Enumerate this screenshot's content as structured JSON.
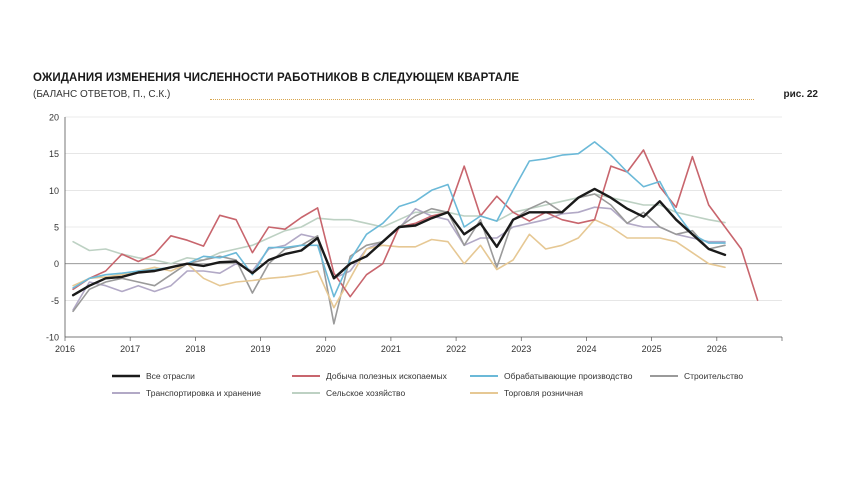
{
  "header": {
    "title": "ОЖИДАНИЯ ИЗМЕНЕНИЯ ЧИСЛЕННОСТИ РАБОТНИКОВ В СЛЕДУЮЩЕМ КВАРТАЛЕ",
    "subtitle": "(БАЛАНС ОТВЕТОВ, П., С.К.)",
    "fig_label": "рис. 22"
  },
  "chart_data": {
    "type": "line",
    "ylim": [
      -10,
      20
    ],
    "yticks": [
      -10,
      -5,
      0,
      5,
      10,
      15,
      20
    ],
    "xlim": [
      2016,
      2027
    ],
    "xticks": [
      "2016",
      "2017",
      "2018",
      "2019",
      "2020",
      "2021",
      "2022",
      "2023",
      "2024",
      "2025",
      "2026"
    ],
    "grid": true,
    "legend_position": "bottom",
    "series": [
      {
        "name": "Все отрасли",
        "color": "#1a1a1a",
        "values": [
          -4.3,
          -3.0,
          -2.0,
          -1.8,
          -1.2,
          -1.0,
          -0.5,
          0.0,
          -0.3,
          0.2,
          0.3,
          -1.3,
          0.5,
          1.3,
          1.8,
          3.5,
          -2.0,
          0.0,
          1.0,
          3.0,
          5.0,
          5.2,
          6.2,
          7.0,
          4.0,
          5.5,
          2.3,
          6.0,
          7.0,
          7.0,
          7.0,
          9.0,
          10.2,
          9.0,
          7.5,
          6.4,
          8.5,
          6.0,
          4.0,
          2.0,
          1.2
        ]
      },
      {
        "name": "Добыча полезных ископаемых",
        "color": "#c8656d",
        "values": [
          -3.5,
          -2.0,
          -1.0,
          1.3,
          0.3,
          1.3,
          3.8,
          3.2,
          2.4,
          6.6,
          6.0,
          1.5,
          5.0,
          4.7,
          6.3,
          7.6,
          -1.3,
          -4.5,
          -1.5,
          0.0,
          5.0,
          5.5,
          6.5,
          7.0,
          13.3,
          6.5,
          9.2,
          7.0,
          5.8,
          7.0,
          6.0,
          5.5,
          6.0,
          13.3,
          12.5,
          15.5,
          10.5,
          7.7,
          14.6,
          8.0,
          5.0,
          2.0,
          -5.0
        ]
      },
      {
        "name": "Обрабатывающие производство",
        "color": "#6bb9d8",
        "values": [
          -3.3,
          -2.0,
          -1.5,
          -1.3,
          -1.0,
          -0.8,
          -0.5,
          0.0,
          1.0,
          0.8,
          1.5,
          -1.5,
          2.2,
          2.2,
          2.5,
          2.5,
          -4.5,
          0.5,
          4.0,
          5.5,
          7.8,
          8.5,
          10.0,
          10.8,
          5.0,
          6.5,
          5.8,
          10.0,
          14.0,
          14.3,
          14.8,
          15.0,
          16.6,
          14.8,
          12.5,
          10.5,
          11.2,
          7.0,
          4.0,
          2.8,
          2.8
        ]
      },
      {
        "name": "Строительство",
        "color": "#9a9a9a",
        "values": [
          -6.5,
          -3.5,
          -2.5,
          -2.0,
          -2.5,
          -3.0,
          -1.5,
          0.0,
          0.5,
          1.0,
          0.5,
          -4.0,
          0.0,
          2.0,
          2.5,
          3.8,
          -8.2,
          1.0,
          2.5,
          3.0,
          5.0,
          6.5,
          7.5,
          7.0,
          2.5,
          6.0,
          -0.5,
          6.0,
          7.5,
          8.5,
          7.0,
          9.0,
          9.5,
          8.0,
          5.5,
          7.0,
          5.0,
          4.0,
          4.5,
          2.0,
          2.5
        ]
      },
      {
        "name": "Транспортировка и хранение",
        "color": "#b2a9c6",
        "values": [
          -6.3,
          -2.5,
          -3.0,
          -3.8,
          -3.0,
          -3.8,
          -3.0,
          -1.0,
          -1.0,
          -1.3,
          0.0,
          -1.0,
          2.0,
          2.5,
          4.0,
          3.5,
          -2.0,
          -1.0,
          2.0,
          3.0,
          4.8,
          7.5,
          6.5,
          6.0,
          2.5,
          3.5,
          3.5,
          5.0,
          5.5,
          6.0,
          6.8,
          7.0,
          7.7,
          7.5,
          5.5,
          5.0,
          5.0,
          4.0,
          3.5,
          3.0,
          3.0
        ]
      },
      {
        "name": "Сельское хозяйство",
        "color": "#bdd1c3",
        "values": [
          3.0,
          1.8,
          2.0,
          1.3,
          0.8,
          0.5,
          0.0,
          0.8,
          0.5,
          1.5,
          2.0,
          2.5,
          3.5,
          4.5,
          5.0,
          6.2,
          6.0,
          6.0,
          5.5,
          5.0,
          6.0,
          7.0,
          7.0,
          7.0,
          6.5,
          6.5,
          5.8,
          7.0,
          7.5,
          8.0,
          8.5,
          9.0,
          9.5,
          9.0,
          8.5,
          8.0,
          8.0,
          7.0,
          6.5,
          6.0,
          5.6
        ]
      },
      {
        "name": "Торговля розничная",
        "color": "#e6c894",
        "values": [
          -3.0,
          -2.0,
          -1.8,
          -1.5,
          -1.0,
          -0.5,
          -1.0,
          0.0,
          -2.0,
          -3.0,
          -2.5,
          -2.3,
          -2.0,
          -1.8,
          -1.5,
          -1.0,
          -6.0,
          -2.0,
          2.0,
          2.5,
          2.3,
          2.3,
          3.3,
          3.0,
          0.0,
          2.5,
          -0.8,
          0.5,
          4.0,
          2.0,
          2.5,
          3.5,
          6.0,
          5.0,
          3.5,
          3.5,
          3.5,
          3.0,
          1.5,
          0.0,
          -0.5
        ]
      }
    ]
  },
  "legend_order": [
    0,
    2,
    4,
    1,
    5,
    3,
    6
  ]
}
